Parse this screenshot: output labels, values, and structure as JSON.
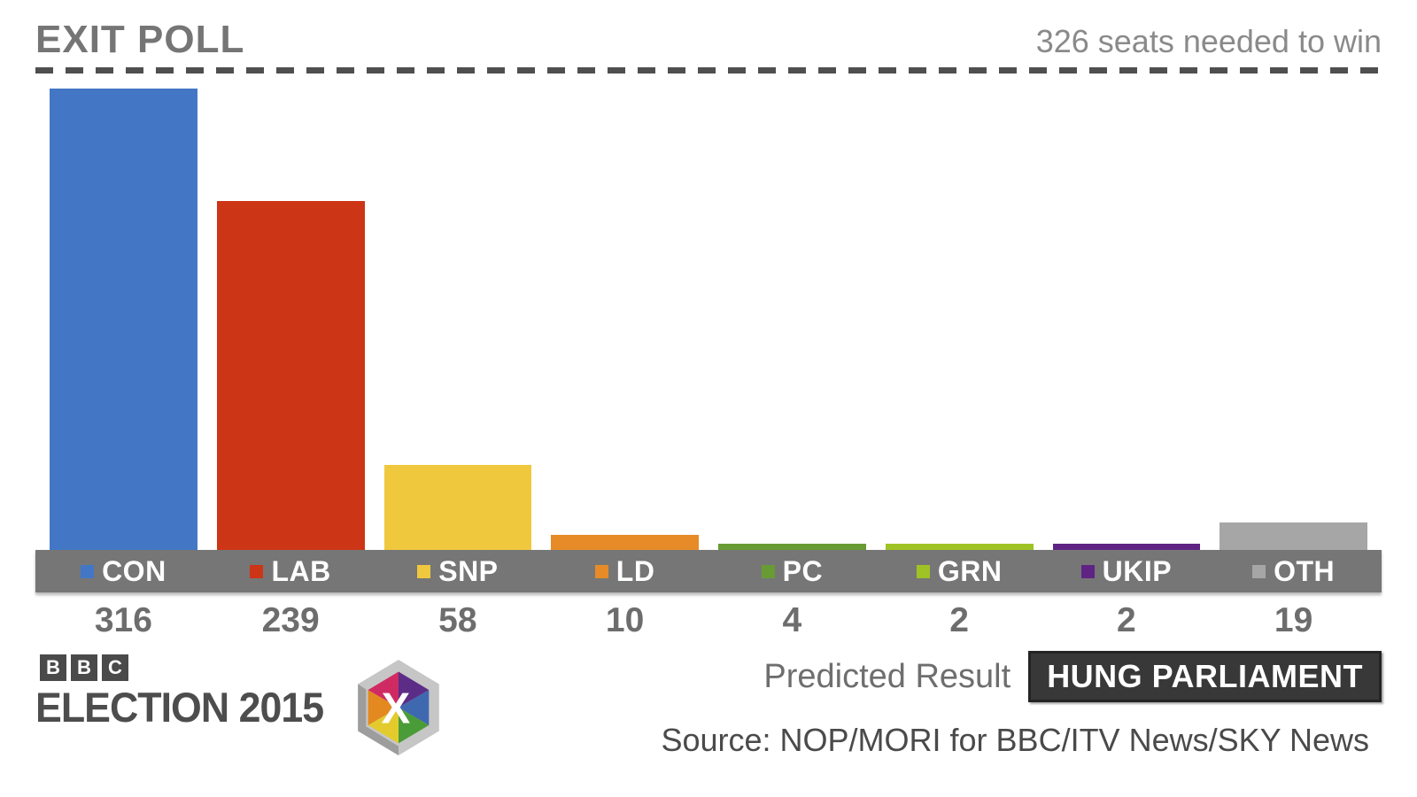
{
  "header": {
    "title": "EXIT POLL",
    "note": "326 seats needed to win"
  },
  "chart_data": {
    "type": "bar",
    "title": "EXIT POLL",
    "annotation": "326 seats needed to win",
    "threshold_value": 326,
    "categories": [
      "CON",
      "LAB",
      "SNP",
      "LD",
      "PC",
      "GRN",
      "UKIP",
      "OTH"
    ],
    "values": [
      316,
      239,
      58,
      10,
      4,
      2,
      2,
      19
    ],
    "colors": [
      "#4377c6",
      "#cd3517",
      "#f0c83e",
      "#e68b27",
      "#699b35",
      "#9fc324",
      "#5f2483",
      "#a6a6a6"
    ],
    "xlabel": "",
    "ylabel": "",
    "ylim": [
      0,
      326
    ],
    "grid": false,
    "legend_position": "below-bars-strip"
  },
  "footer": {
    "predicted_label": "Predicted Result",
    "predicted_value": "HUNG PARLIAMENT",
    "source": "Source: NOP/MORI for BBC/ITV News/SKY News",
    "brand": {
      "bbc_letters": [
        "B",
        "B",
        "C"
      ],
      "election_title": "ELECTION 2015",
      "logo_letter": "X"
    }
  },
  "colors": {
    "background": "#ffffff",
    "title_text": "#757575",
    "note_text": "#8a8a8a",
    "threshold_dash": "#4f4f4f",
    "legend_strip": "#767676",
    "legend_text": "#ffffff",
    "value_text": "#6d6d6d",
    "badge_background": "#383838",
    "badge_text": "#ffffff",
    "source_text": "#4a4a4a",
    "bbc_block": "#4a4a4a"
  }
}
